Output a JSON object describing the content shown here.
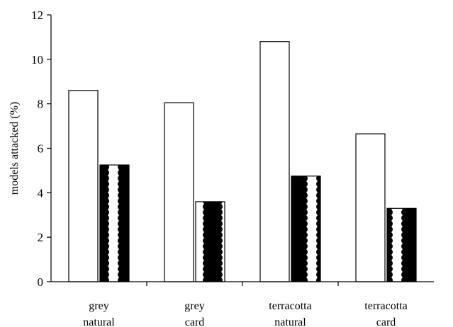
{
  "chart_data": {
    "type": "bar",
    "title": "",
    "xlabel": "",
    "ylabel": "models attacked (%)",
    "ylim": [
      0,
      12
    ],
    "yticks": [
      0,
      2,
      4,
      6,
      8,
      10,
      12
    ],
    "grid": false,
    "legend": "none",
    "categories": [
      [
        "grey",
        "natural"
      ],
      [
        "grey",
        "card"
      ],
      [
        "terracotta",
        "natural"
      ],
      [
        "terracotta",
        "card"
      ]
    ],
    "series": [
      {
        "fill": "white",
        "color": "#ffffff",
        "values": [
          8.6,
          8.05,
          10.8,
          6.65
        ]
      },
      {
        "fill": "black-wavy-pattern",
        "color": "#000000",
        "values": [
          5.25,
          3.6,
          4.75,
          3.3
        ]
      }
    ]
  }
}
